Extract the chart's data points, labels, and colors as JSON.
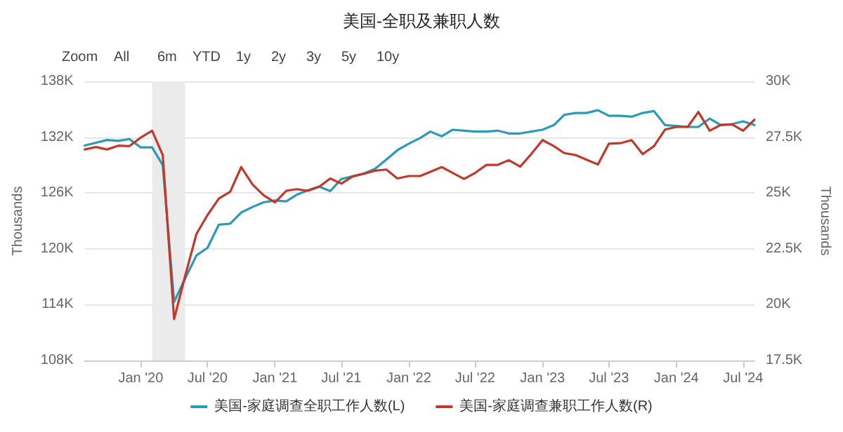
{
  "chart_data": {
    "type": "line",
    "title": "美国-全职及兼职人数",
    "annotations": [
      "Zoom",
      "All",
      "6m",
      "YTD",
      "1y",
      "2y",
      "3y",
      "5y",
      "10y"
    ],
    "ylabel": "Thousands",
    "y2label": "Thousands",
    "x": [
      "2019-08",
      "2019-09",
      "2019-10",
      "2019-11",
      "2019-12",
      "2020-01",
      "2020-02",
      "2020-03",
      "2020-04",
      "2020-05",
      "2020-06",
      "2020-07",
      "2020-08",
      "2020-09",
      "2020-10",
      "2020-11",
      "2020-12",
      "2021-01",
      "2021-02",
      "2021-03",
      "2021-04",
      "2021-05",
      "2021-06",
      "2021-07",
      "2021-08",
      "2021-09",
      "2021-10",
      "2021-11",
      "2021-12",
      "2022-01",
      "2022-02",
      "2022-03",
      "2022-04",
      "2022-05",
      "2022-06",
      "2022-07",
      "2022-08",
      "2022-09",
      "2022-10",
      "2022-11",
      "2022-12",
      "2023-01",
      "2023-02",
      "2023-03",
      "2023-04",
      "2023-05",
      "2023-06",
      "2023-07",
      "2023-08",
      "2023-09",
      "2023-10",
      "2023-11",
      "2023-12",
      "2024-01",
      "2024-02",
      "2024-03",
      "2024-04",
      "2024-05",
      "2024-06",
      "2024-07",
      "2024-08"
    ],
    "series": [
      {
        "name": "美国-家庭调查全职工作人数(L)",
        "color": "#2b9ab8",
        "values": [
          131100,
          131400,
          131700,
          131600,
          131800,
          130900,
          130900,
          129000,
          114300,
          116800,
          119300,
          120100,
          122600,
          122700,
          123900,
          124500,
          125000,
          125200,
          125100,
          125800,
          126300,
          126700,
          126200,
          127500,
          127800,
          128100,
          128600,
          129600,
          130600,
          131300,
          131900,
          132600,
          132100,
          132800,
          132700,
          132600,
          132600,
          132700,
          132400,
          132400,
          132600,
          132800,
          133300,
          134400,
          134600,
          134600,
          134900,
          134300,
          134300,
          134200,
          134600,
          134800,
          133300,
          133200,
          133100,
          133100,
          134000,
          133300,
          133400,
          133700,
          133300
        ]
      },
      {
        "name": "美国-家庭调查兼职工作人数(R)",
        "color": "#c0392b",
        "axis": "y2",
        "values": [
          26950,
          27060,
          26950,
          27120,
          27100,
          27480,
          27790,
          26700,
          19350,
          21280,
          23170,
          24010,
          24750,
          25060,
          26160,
          25380,
          24900,
          24580,
          25100,
          25170,
          25100,
          25270,
          25650,
          25420,
          25740,
          25860,
          26000,
          26050,
          25650,
          25760,
          25760,
          25950,
          26160,
          25900,
          25630,
          25900,
          26260,
          26260,
          26470,
          26180,
          26740,
          27370,
          27100,
          26790,
          26700,
          26490,
          26280,
          27210,
          27230,
          27370,
          26740,
          27100,
          27840,
          27960,
          27960,
          28630,
          27790,
          28050,
          28070,
          27790,
          28280
        ]
      }
    ],
    "xlim": [
      "2019-08",
      "2024-08"
    ],
    "xticks": [
      {
        "value": "2020-01",
        "label": "Jan '20"
      },
      {
        "value": "2020-07",
        "label": "Jul '20"
      },
      {
        "value": "2021-01",
        "label": "Jan '21"
      },
      {
        "value": "2021-07",
        "label": "Jul '21"
      },
      {
        "value": "2022-01",
        "label": "Jan '22"
      },
      {
        "value": "2022-07",
        "label": "Jul '22"
      },
      {
        "value": "2023-01",
        "label": "Jan '23"
      },
      {
        "value": "2023-07",
        "label": "Jul '23"
      },
      {
        "value": "2024-01",
        "label": "Jan '24"
      },
      {
        "value": "2024-07",
        "label": "Jul '24"
      }
    ],
    "ylim": [
      108000,
      138000
    ],
    "yticks": [
      {
        "value": 108000,
        "label": "108K"
      },
      {
        "value": 114000,
        "label": "114K"
      },
      {
        "value": 120000,
        "label": "120K"
      },
      {
        "value": 126000,
        "label": "126K"
      },
      {
        "value": 132000,
        "label": "132K"
      },
      {
        "value": 138000,
        "label": "138K"
      }
    ],
    "y2lim": [
      17500,
      30000
    ],
    "y2ticks": [
      {
        "value": 17500,
        "label": "17.5K"
      },
      {
        "value": 20000,
        "label": "20K"
      },
      {
        "value": 22500,
        "label": "22.5K"
      },
      {
        "value": 25000,
        "label": "25K"
      },
      {
        "value": 27500,
        "label": "27.5K"
      },
      {
        "value": 30000,
        "label": "30K"
      }
    ],
    "bands": [
      {
        "axis": "x",
        "from": "2020-02",
        "to": "2020-05",
        "color": "#ebebeb"
      }
    ],
    "grid": "y",
    "legend": "bottom",
    "marker": "none",
    "line_style": "solid"
  }
}
